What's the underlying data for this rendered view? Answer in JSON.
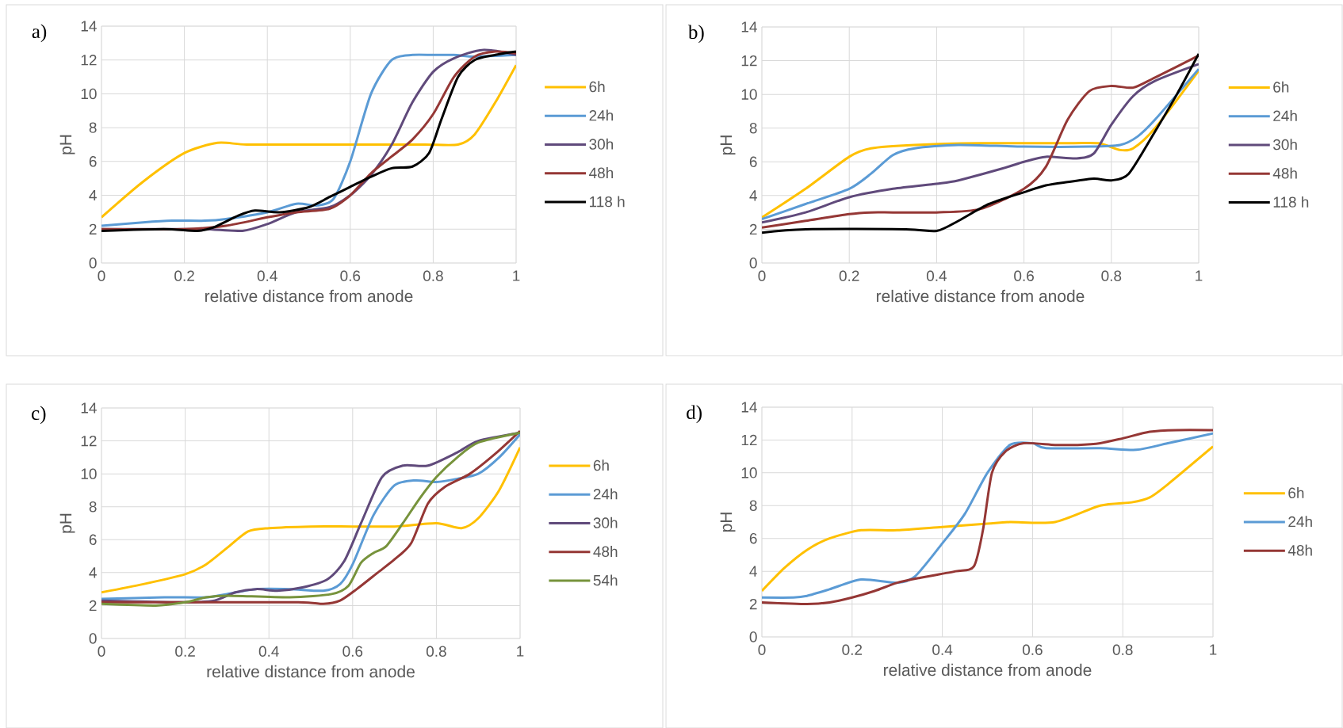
{
  "chart_data": [
    {
      "type": "line",
      "title": "a)",
      "xlabel": "relative distance from anode",
      "ylabel": "pH",
      "xlim": [
        0,
        1
      ],
      "ylim": [
        0,
        14
      ],
      "xticks": [
        0,
        0.2,
        0.4,
        0.6,
        0.8,
        1
      ],
      "yticks": [
        0,
        2,
        4,
        6,
        8,
        10,
        12,
        14
      ],
      "grid": true,
      "legend": "right",
      "series": [
        {
          "name": "6h",
          "color": "#ffc000",
          "x": [
            0,
            0.1,
            0.2,
            0.28,
            0.35,
            0.5,
            0.65,
            0.78,
            0.86,
            0.9,
            0.95,
            1
          ],
          "values": [
            2.7,
            4.8,
            6.5,
            7.1,
            7.0,
            7.0,
            7.0,
            7.0,
            7.0,
            7.6,
            9.5,
            11.7
          ]
        },
        {
          "name": "24h",
          "color": "#5b9bd5",
          "x": [
            0,
            0.1,
            0.17,
            0.25,
            0.3,
            0.4,
            0.47,
            0.52,
            0.56,
            0.6,
            0.65,
            0.7,
            0.75,
            0.8,
            0.85,
            0.9,
            1
          ],
          "values": [
            2.2,
            2.4,
            2.5,
            2.5,
            2.6,
            3.0,
            3.5,
            3.4,
            3.8,
            6.0,
            10.0,
            12.0,
            12.3,
            12.3,
            12.3,
            12.2,
            12.3
          ]
        },
        {
          "name": "30h",
          "color": "#604a7b",
          "x": [
            0,
            0.15,
            0.25,
            0.34,
            0.4,
            0.47,
            0.55,
            0.6,
            0.65,
            0.7,
            0.75,
            0.8,
            0.85,
            0.92,
            1
          ],
          "values": [
            2.0,
            2.0,
            2.0,
            1.9,
            2.3,
            3.0,
            3.3,
            4.0,
            5.2,
            7.0,
            9.5,
            11.3,
            12.1,
            12.6,
            12.3
          ]
        },
        {
          "name": "48h",
          "color": "#953735",
          "x": [
            0,
            0.2,
            0.3,
            0.4,
            0.47,
            0.55,
            0.6,
            0.65,
            0.7,
            0.75,
            0.8,
            0.85,
            0.9,
            0.95,
            1
          ],
          "values": [
            2.0,
            2.0,
            2.2,
            2.7,
            3.0,
            3.2,
            4.0,
            5.3,
            6.3,
            7.3,
            8.8,
            11.0,
            12.2,
            12.5,
            12.4
          ]
        },
        {
          "name": "118 h",
          "color": "#000000",
          "x": [
            0,
            0.15,
            0.23,
            0.27,
            0.33,
            0.37,
            0.43,
            0.5,
            0.55,
            0.6,
            0.65,
            0.7,
            0.75,
            0.79,
            0.82,
            0.86,
            0.9,
            0.95,
            1
          ],
          "values": [
            1.9,
            2.0,
            1.9,
            2.1,
            2.8,
            3.1,
            3.0,
            3.3,
            3.9,
            4.5,
            5.1,
            5.6,
            5.7,
            6.5,
            8.5,
            11.0,
            12.0,
            12.3,
            12.5
          ]
        }
      ]
    },
    {
      "type": "line",
      "title": "b)",
      "xlabel": "relative distance from anode",
      "ylabel": "pH",
      "xlim": [
        0,
        1
      ],
      "ylim": [
        0,
        14
      ],
      "xticks": [
        0,
        0.2,
        0.4,
        0.6,
        0.8,
        1
      ],
      "yticks": [
        0,
        2,
        4,
        6,
        8,
        10,
        12,
        14
      ],
      "grid": true,
      "legend": "right",
      "series": [
        {
          "name": "6h",
          "color": "#ffc000",
          "x": [
            0,
            0.1,
            0.2,
            0.25,
            0.35,
            0.5,
            0.7,
            0.77,
            0.82,
            0.85,
            0.9,
            1
          ],
          "values": [
            2.7,
            4.4,
            6.3,
            6.8,
            7.0,
            7.1,
            7.1,
            7.1,
            6.7,
            6.8,
            8.0,
            11.4
          ]
        },
        {
          "name": "24h",
          "color": "#5b9bd5",
          "x": [
            0,
            0.1,
            0.2,
            0.25,
            0.3,
            0.35,
            0.45,
            0.6,
            0.75,
            0.82,
            0.86,
            0.9,
            1
          ],
          "values": [
            2.6,
            3.5,
            4.4,
            5.3,
            6.4,
            6.8,
            7.0,
            6.9,
            6.9,
            7.0,
            7.5,
            8.5,
            11.5
          ]
        },
        {
          "name": "30h",
          "color": "#604a7b",
          "x": [
            0,
            0.1,
            0.2,
            0.3,
            0.4,
            0.45,
            0.55,
            0.6,
            0.65,
            0.72,
            0.76,
            0.8,
            0.85,
            0.9,
            1
          ],
          "values": [
            2.4,
            3.0,
            3.9,
            4.4,
            4.7,
            4.9,
            5.6,
            6.0,
            6.3,
            6.2,
            6.5,
            8.2,
            9.9,
            10.8,
            11.8
          ]
        },
        {
          "name": "48h",
          "color": "#953735",
          "x": [
            0,
            0.1,
            0.2,
            0.25,
            0.3,
            0.4,
            0.5,
            0.6,
            0.65,
            0.7,
            0.75,
            0.8,
            0.85,
            0.9,
            1
          ],
          "values": [
            2.1,
            2.5,
            2.9,
            3.0,
            3.0,
            3.0,
            3.2,
            4.4,
            5.7,
            8.5,
            10.2,
            10.5,
            10.4,
            11.0,
            12.3
          ]
        },
        {
          "name": "118 h",
          "color": "#000000",
          "x": [
            0,
            0.1,
            0.33,
            0.4,
            0.45,
            0.52,
            0.6,
            0.65,
            0.7,
            0.76,
            0.8,
            0.84,
            0.9,
            0.95,
            1
          ],
          "values": [
            1.8,
            2.0,
            2.0,
            1.9,
            2.5,
            3.5,
            4.2,
            4.6,
            4.8,
            5.0,
            4.9,
            5.3,
            7.8,
            10.0,
            12.4
          ]
        }
      ]
    },
    {
      "type": "line",
      "title": "c)",
      "xlabel": "relative distance from anode",
      "ylabel": "pH",
      "xlim": [
        0,
        1
      ],
      "ylim": [
        0,
        14
      ],
      "xticks": [
        0,
        0.2,
        0.4,
        0.6,
        0.8,
        1
      ],
      "yticks": [
        0,
        2,
        4,
        6,
        8,
        10,
        12,
        14
      ],
      "grid": true,
      "legend": "right",
      "series": [
        {
          "name": "6h",
          "color": "#ffc000",
          "x": [
            0,
            0.1,
            0.2,
            0.25,
            0.3,
            0.35,
            0.4,
            0.5,
            0.6,
            0.7,
            0.8,
            0.86,
            0.9,
            0.95,
            1
          ],
          "values": [
            2.8,
            3.3,
            3.9,
            4.5,
            5.5,
            6.5,
            6.7,
            6.8,
            6.8,
            6.8,
            7.0,
            6.7,
            7.3,
            9.0,
            11.6
          ]
        },
        {
          "name": "24h",
          "color": "#5b9bd5",
          "x": [
            0,
            0.15,
            0.25,
            0.3,
            0.37,
            0.45,
            0.53,
            0.57,
            0.6,
            0.65,
            0.7,
            0.75,
            0.8,
            0.85,
            0.9,
            0.95,
            1
          ],
          "values": [
            2.4,
            2.5,
            2.5,
            2.7,
            3.0,
            3.0,
            2.9,
            3.3,
            4.5,
            7.5,
            9.3,
            9.6,
            9.5,
            9.7,
            10.0,
            11.0,
            12.4
          ]
        },
        {
          "name": "30h",
          "color": "#604a7b",
          "x": [
            0,
            0.2,
            0.27,
            0.32,
            0.37,
            0.42,
            0.48,
            0.54,
            0.58,
            0.62,
            0.67,
            0.72,
            0.78,
            0.85,
            0.9,
            1
          ],
          "values": [
            2.3,
            2.2,
            2.3,
            2.8,
            3.0,
            2.9,
            3.1,
            3.6,
            4.7,
            7.0,
            9.8,
            10.5,
            10.5,
            11.3,
            12.0,
            12.5
          ]
        },
        {
          "name": "48h",
          "color": "#953735",
          "x": [
            0,
            0.2,
            0.47,
            0.53,
            0.57,
            0.61,
            0.66,
            0.7,
            0.74,
            0.78,
            0.82,
            0.88,
            0.94,
            1
          ],
          "values": [
            2.2,
            2.2,
            2.2,
            2.1,
            2.3,
            3.0,
            4.0,
            4.8,
            5.8,
            8.2,
            9.2,
            10.0,
            11.2,
            12.6
          ]
        },
        {
          "name": "54h",
          "color": "#77933c",
          "x": [
            0,
            0.13,
            0.2,
            0.25,
            0.3,
            0.45,
            0.55,
            0.59,
            0.62,
            0.65,
            0.68,
            0.72,
            0.76,
            0.8,
            0.85,
            0.9,
            1
          ],
          "values": [
            2.1,
            2.0,
            2.2,
            2.5,
            2.6,
            2.5,
            2.7,
            3.2,
            4.6,
            5.2,
            5.6,
            7.0,
            8.5,
            9.8,
            11.0,
            11.9,
            12.5
          ]
        }
      ]
    },
    {
      "type": "line",
      "title": "d)",
      "xlabel": "relative distance from anode",
      "ylabel": "pH",
      "xlim": [
        0,
        1
      ],
      "ylim": [
        0,
        14
      ],
      "xticks": [
        0,
        0.2,
        0.4,
        0.6,
        0.8,
        1
      ],
      "yticks": [
        0,
        2,
        4,
        6,
        8,
        10,
        12,
        14
      ],
      "grid": true,
      "legend": "right",
      "series": [
        {
          "name": "6h",
          "color": "#ffc000",
          "x": [
            0,
            0.05,
            0.1,
            0.15,
            0.22,
            0.3,
            0.4,
            0.5,
            0.55,
            0.65,
            0.75,
            0.82,
            0.86,
            0.9,
            1
          ],
          "values": [
            2.8,
            4.2,
            5.3,
            6.0,
            6.5,
            6.5,
            6.7,
            6.9,
            7.0,
            7.0,
            8.0,
            8.2,
            8.5,
            9.3,
            11.6
          ]
        },
        {
          "name": "24h",
          "color": "#5b9bd5",
          "x": [
            0,
            0.07,
            0.1,
            0.15,
            0.22,
            0.3,
            0.34,
            0.4,
            0.45,
            0.5,
            0.55,
            0.6,
            0.63,
            0.75,
            0.83,
            0.9,
            1
          ],
          "values": [
            2.4,
            2.4,
            2.5,
            2.9,
            3.5,
            3.3,
            3.7,
            5.7,
            7.5,
            10.0,
            11.7,
            11.8,
            11.5,
            11.5,
            11.4,
            11.8,
            12.4
          ]
        },
        {
          "name": "48h",
          "color": "#953735",
          "x": [
            0,
            0.1,
            0.15,
            0.2,
            0.25,
            0.3,
            0.35,
            0.43,
            0.47,
            0.49,
            0.51,
            0.54,
            0.58,
            0.65,
            0.7,
            0.75,
            0.8,
            0.86,
            0.92,
            1
          ],
          "values": [
            2.1,
            2.0,
            2.1,
            2.4,
            2.8,
            3.3,
            3.6,
            4.0,
            4.3,
            6.5,
            10.0,
            11.3,
            11.8,
            11.7,
            11.7,
            11.8,
            12.1,
            12.5,
            12.6,
            12.6
          ]
        }
      ]
    }
  ]
}
